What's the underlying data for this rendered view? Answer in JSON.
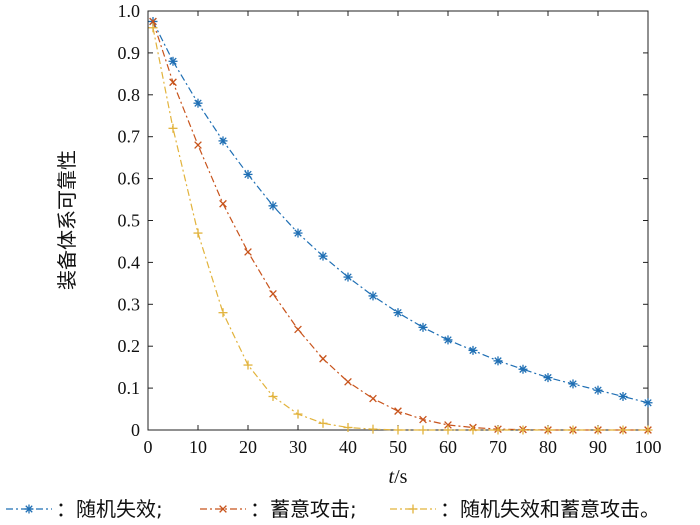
{
  "chart_data": {
    "type": "line",
    "title": "",
    "xlabel": "t/s",
    "xlabel_var": "t",
    "xlabel_unit": "/s",
    "ylabel": "装备体系可靠性",
    "xlim": [
      0,
      100
    ],
    "ylim": [
      0,
      1.0
    ],
    "xticks": [
      0,
      10,
      20,
      30,
      40,
      50,
      60,
      70,
      80,
      90,
      100
    ],
    "xtick_labels": [
      "0",
      "10",
      "20",
      "30",
      "40",
      "50",
      "60",
      "70",
      "80",
      "90",
      "100"
    ],
    "yticks": [
      0,
      0.1,
      0.2,
      0.3,
      0.4,
      0.5,
      0.6,
      0.7,
      0.8,
      0.9,
      1.0
    ],
    "ytick_labels": [
      "0",
      "0.1",
      "0.2",
      "0.3",
      "0.4",
      "0.5",
      "0.6",
      "0.7",
      "0.8",
      "0.9",
      "1.0"
    ],
    "grid": false,
    "legend_position": "bottom",
    "x": [
      1,
      5,
      10,
      15,
      20,
      25,
      30,
      35,
      40,
      45,
      50,
      55,
      60,
      65,
      70,
      75,
      80,
      85,
      90,
      95,
      100
    ],
    "series": [
      {
        "name": "随机失效;",
        "marker": "*",
        "color": "#1f6fb4",
        "values": [
          0.975,
          0.88,
          0.78,
          0.69,
          0.61,
          0.535,
          0.47,
          0.415,
          0.365,
          0.32,
          0.28,
          0.245,
          0.215,
          0.19,
          0.165,
          0.145,
          0.125,
          0.11,
          0.095,
          0.08,
          0.065
        ]
      },
      {
        "name": "蓄意攻击;",
        "marker": "x",
        "color": "#c8541c",
        "values": [
          0.975,
          0.83,
          0.68,
          0.54,
          0.425,
          0.325,
          0.24,
          0.17,
          0.115,
          0.075,
          0.045,
          0.025,
          0.012,
          0.006,
          0.002,
          0.001,
          0.0,
          0.0,
          0.0,
          0.0,
          0.0
        ]
      },
      {
        "name": "随机失效和蓄意攻击。",
        "marker": "+",
        "color": "#e2b33c",
        "values": [
          0.96,
          0.72,
          0.47,
          0.28,
          0.155,
          0.08,
          0.038,
          0.016,
          0.006,
          0.002,
          0.0,
          0.0,
          0.0,
          0.0,
          0.0,
          0.0,
          0.0,
          0.0,
          0.0,
          0.0,
          0.0
        ]
      }
    ]
  }
}
